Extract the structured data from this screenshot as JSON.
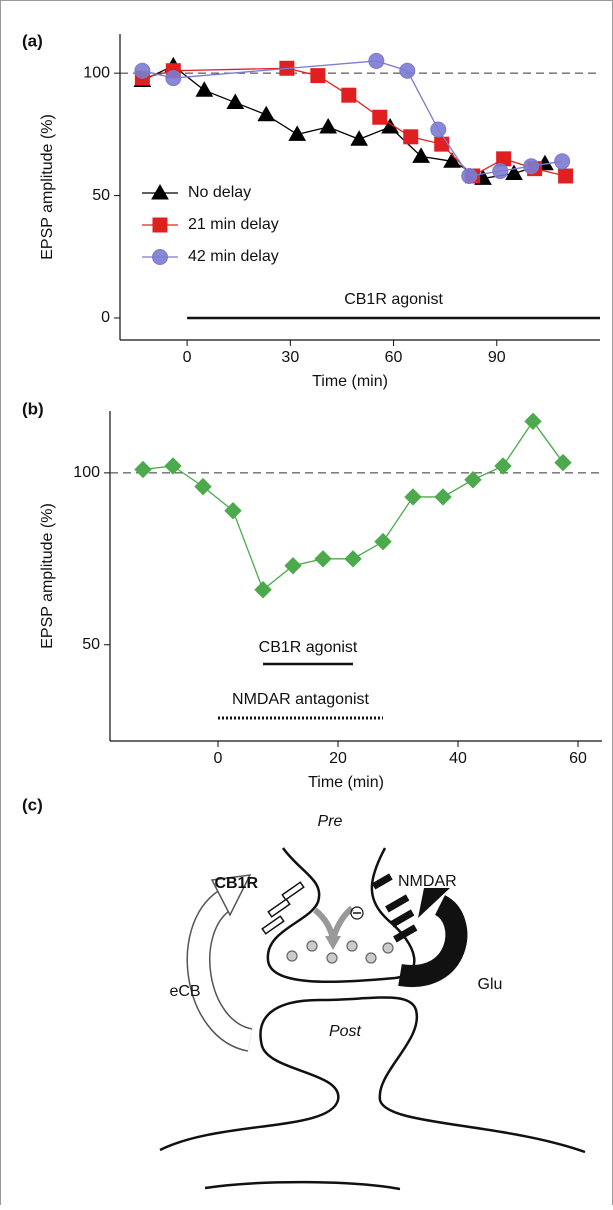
{
  "chart_data": [
    {
      "type": "line",
      "panel_label": "(a)",
      "y_label": "EPSP amplitude (%)",
      "x_label": "Time (min)",
      "xlim": [
        -19.5,
        120
      ],
      "xticks": [
        0,
        30,
        60,
        90
      ],
      "ylim": [
        -9,
        116
      ],
      "yticks": [
        0,
        50,
        100
      ],
      "reference_line": 100,
      "legend": "center left",
      "series": [
        {
          "name": "No delay",
          "color": "#000000",
          "marker": "triangle",
          "x": [
            -13,
            -4,
            5,
            14,
            23,
            32,
            41,
            50,
            59,
            68,
            77,
            86,
            95,
            104
          ],
          "values": [
            97,
            103,
            93,
            88,
            83,
            75,
            78,
            73,
            78,
            66,
            64,
            57,
            59,
            63
          ]
        },
        {
          "name": "21 min delay",
          "color": "#e02020",
          "marker": "square",
          "x": [
            -13,
            -4,
            29,
            38,
            47,
            56,
            65,
            74,
            83,
            92,
            101,
            110
          ],
          "values": [
            98,
            101,
            102,
            99,
            91,
            82,
            74,
            71,
            58,
            65,
            61,
            58
          ]
        },
        {
          "name": "42 min delay",
          "color": "#7b7bd2",
          "marker": "circle",
          "x": [
            -13,
            -4,
            55,
            64,
            73,
            82,
            91,
            100,
            109
          ],
          "values": [
            101,
            98,
            105,
            101,
            77,
            58,
            60,
            62,
            64
          ]
        }
      ],
      "annotations": [
        {
          "text": "CB1R agonist",
          "x": [
            0,
            120
          ],
          "style": "solid"
        }
      ]
    },
    {
      "type": "line",
      "panel_label": "(b)",
      "y_label": "EPSP amplitude (%)",
      "x_label": "Time (min)",
      "xlim": [
        -18,
        64
      ],
      "xticks": [
        0,
        20,
        40,
        60
      ],
      "ylim": [
        22,
        118
      ],
      "yticks": [
        50,
        100
      ],
      "reference_line": 100,
      "series": [
        {
          "color": "#4caa4c",
          "marker": "diamond",
          "x": [
            -12.5,
            -7.5,
            -2.5,
            2.5,
            7.5,
            12.5,
            17.5,
            22.5,
            27.5,
            32.5,
            37.5,
            42.5,
            47.5,
            52.5,
            57.5
          ],
          "values": [
            101,
            102,
            96,
            89,
            66,
            73,
            75,
            75,
            80,
            93,
            93,
            98,
            102,
            115,
            103
          ]
        }
      ],
      "annotations": [
        {
          "text": "CB1R agonist",
          "x": [
            7.5,
            22.5
          ],
          "style": "solid"
        },
        {
          "text": "NMDAR antagonist",
          "x": [
            0,
            27.5
          ],
          "style": "dotted"
        }
      ]
    }
  ],
  "diagram": {
    "panel_label": "(c)",
    "pre": "Pre",
    "cb1r": "CB1R",
    "nmdar": "NMDAR",
    "ecb": "eCB",
    "glu": "Glu",
    "post": "Post"
  }
}
